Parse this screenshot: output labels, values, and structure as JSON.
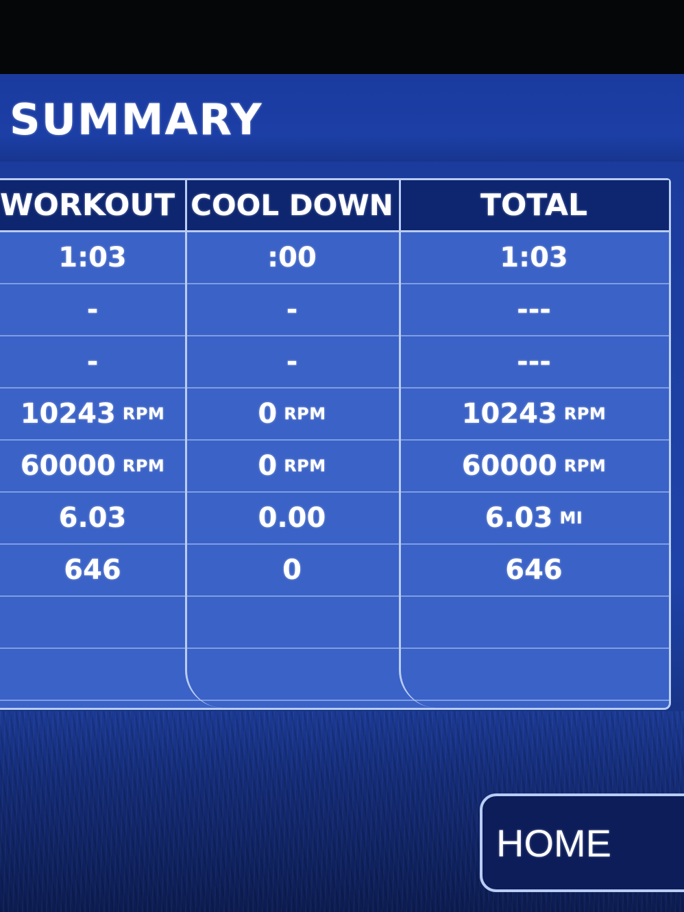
{
  "screen": {
    "title": "SUMMARY"
  },
  "columns": [
    {
      "header": "WORKOUT",
      "rows": [
        {
          "value": "1:03",
          "unit": ""
        },
        {
          "value": "-",
          "unit": ""
        },
        {
          "value": "-",
          "unit": ""
        },
        {
          "value": "10243",
          "unit": "RPM"
        },
        {
          "value": "60000",
          "unit": "RPM"
        },
        {
          "value": "6.03",
          "unit": ""
        },
        {
          "value": "646",
          "unit": ""
        },
        {
          "value": "",
          "unit": ""
        },
        {
          "value": "",
          "unit": ""
        }
      ]
    },
    {
      "header": "COOL DOWN",
      "rows": [
        {
          "value": ":00",
          "unit": ""
        },
        {
          "value": "-",
          "unit": ""
        },
        {
          "value": "-",
          "unit": ""
        },
        {
          "value": "0",
          "unit": "RPM"
        },
        {
          "value": "0",
          "unit": "RPM"
        },
        {
          "value": "0.00",
          "unit": ""
        },
        {
          "value": "0",
          "unit": ""
        },
        {
          "value": "",
          "unit": ""
        },
        {
          "value": "",
          "unit": ""
        }
      ]
    },
    {
      "header": "TOTAL",
      "rows": [
        {
          "value": "1:03",
          "unit": ""
        },
        {
          "value": "---",
          "unit": ""
        },
        {
          "value": "---",
          "unit": ""
        },
        {
          "value": "10243",
          "unit": "RPM"
        },
        {
          "value": "60000",
          "unit": "RPM"
        },
        {
          "value": "6.03",
          "unit": "MI"
        },
        {
          "value": "646",
          "unit": ""
        },
        {
          "value": "",
          "unit": ""
        },
        {
          "value": "",
          "unit": ""
        }
      ]
    }
  ],
  "home_button": {
    "label": "HOME"
  },
  "colors": {
    "background": "#1e43a8",
    "header": "#0e2670",
    "panel": "#3b62c6",
    "border": "#b9cdf5"
  }
}
